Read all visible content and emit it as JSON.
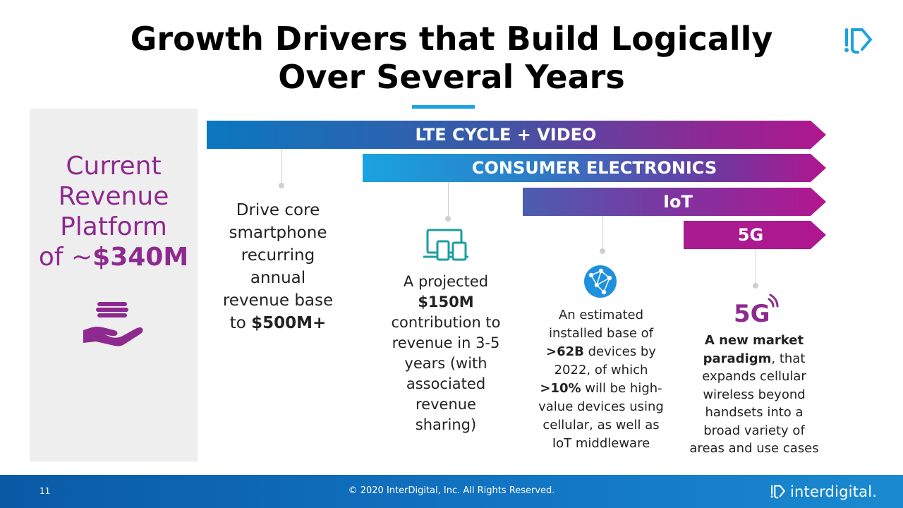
{
  "title": {
    "line1": "Growth Drivers that Build Logically",
    "line2": "Over Several Years"
  },
  "platform": {
    "line1": "Current",
    "line2": "Revenue",
    "line3": "Platform",
    "prefix": "of ~",
    "amount": "$340M"
  },
  "arrows": {
    "lte": "LTE CYCLE + VIDEO",
    "ce": "CONSUMER ELECTRONICS",
    "iot": "IoT",
    "g5": "5G"
  },
  "driver1": {
    "l1": "Drive core",
    "l2": "smartphone",
    "l3": "recurring",
    "l4": "annual",
    "l5": "revenue base",
    "l6_pre": "to ",
    "l6_bold": "$500M+"
  },
  "driver2": {
    "l1": "A projected",
    "l2_bold": "$150M",
    "l3": "contribution to",
    "l4": "revenue in 3-5",
    "l5": "years (with",
    "l6": "associated",
    "l7": "revenue",
    "l8": "sharing)"
  },
  "driver3": {
    "l1": "An estimated",
    "l2": "installed base of",
    "l3_bold": ">62B",
    "l3_rest": " devices by",
    "l4": "2022, of which",
    "l5_bold": ">10%",
    "l5_rest": " will be high-",
    "l6": "value devices using",
    "l7": "cellular, as well as",
    "l8": "IoT middleware"
  },
  "driver4": {
    "l1_bold": "A new market",
    "l2_bold": "paradigm",
    "l2_rest": ", that",
    "l3": "expands cellular",
    "l4": "wireless beyond",
    "l5": "handsets into a",
    "l6": "broad variety of",
    "l7": "areas and use cases",
    "icon_text": "5G"
  },
  "footer": {
    "page": "11",
    "copyright": "© 2020 InterDigital, Inc. All Rights Reserved.",
    "brand": "interdigital."
  },
  "colors": {
    "accent_blue": "#1aa3e0",
    "accent_purple": "#8e2a8f",
    "footer_blue": "#0a5aa6"
  }
}
